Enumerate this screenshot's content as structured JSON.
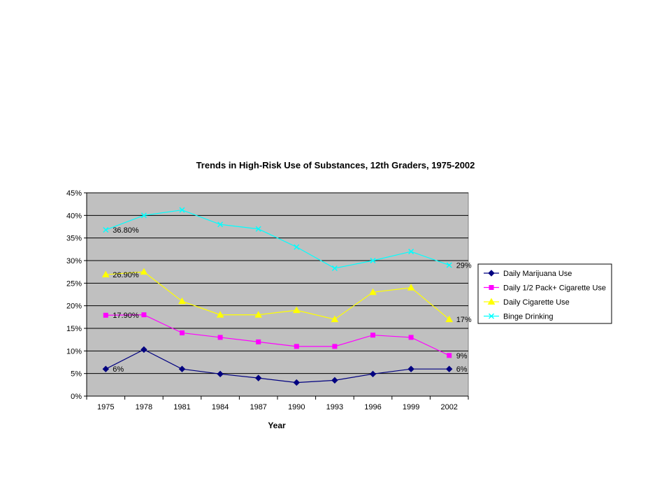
{
  "chart_data": {
    "type": "line",
    "title": "Trends in High-Risk Use of Substances, 12th Graders, 1975-2002",
    "xlabel": "Year",
    "ylabel": "",
    "ylim": [
      0,
      45
    ],
    "y_ticks": [
      "0%",
      "5%",
      "10%",
      "15%",
      "20%",
      "25%",
      "30%",
      "35%",
      "40%",
      "45%"
    ],
    "categories": [
      "1975",
      "1978",
      "1981",
      "1984",
      "1987",
      "1990",
      "1993",
      "1996",
      "1999",
      "2002"
    ],
    "grid": "horizontal",
    "plot_background": "#c0c0c0",
    "legend_position": "right",
    "series": [
      {
        "name": "Daily Marijuana Use",
        "color": "#000080",
        "marker": "diamond",
        "values": [
          6,
          10.3,
          6,
          4.9,
          4,
          3,
          3.5,
          4.9,
          6,
          6
        ],
        "labels": [
          {
            "index": 0,
            "text": "6%"
          },
          {
            "index": 9,
            "text": "6%"
          }
        ]
      },
      {
        "name": "Daily 1/2 Pack+ Cigarette Use",
        "color": "#ff00ff",
        "marker": "square",
        "values": [
          17.9,
          18,
          14,
          13,
          12,
          11,
          11,
          13.5,
          13,
          9
        ],
        "labels": [
          {
            "index": 0,
            "text": "17.90%"
          },
          {
            "index": 9,
            "text": "9%"
          }
        ]
      },
      {
        "name": "Daily Cigarette Use",
        "color": "#ffff00",
        "marker": "triangle",
        "values": [
          26.9,
          27.5,
          21,
          18,
          18,
          19,
          17,
          23,
          24,
          17
        ],
        "labels": [
          {
            "index": 0,
            "text": "26.90%"
          },
          {
            "index": 9,
            "text": "17%"
          }
        ]
      },
      {
        "name": "Binge Drinking",
        "color": "#00ffff",
        "marker": "x",
        "values": [
          36.8,
          40,
          41.2,
          38,
          37,
          33,
          28.3,
          30,
          32,
          29
        ],
        "labels": [
          {
            "index": 0,
            "text": "36.80%"
          },
          {
            "index": 9,
            "text": "29%"
          }
        ]
      }
    ]
  }
}
